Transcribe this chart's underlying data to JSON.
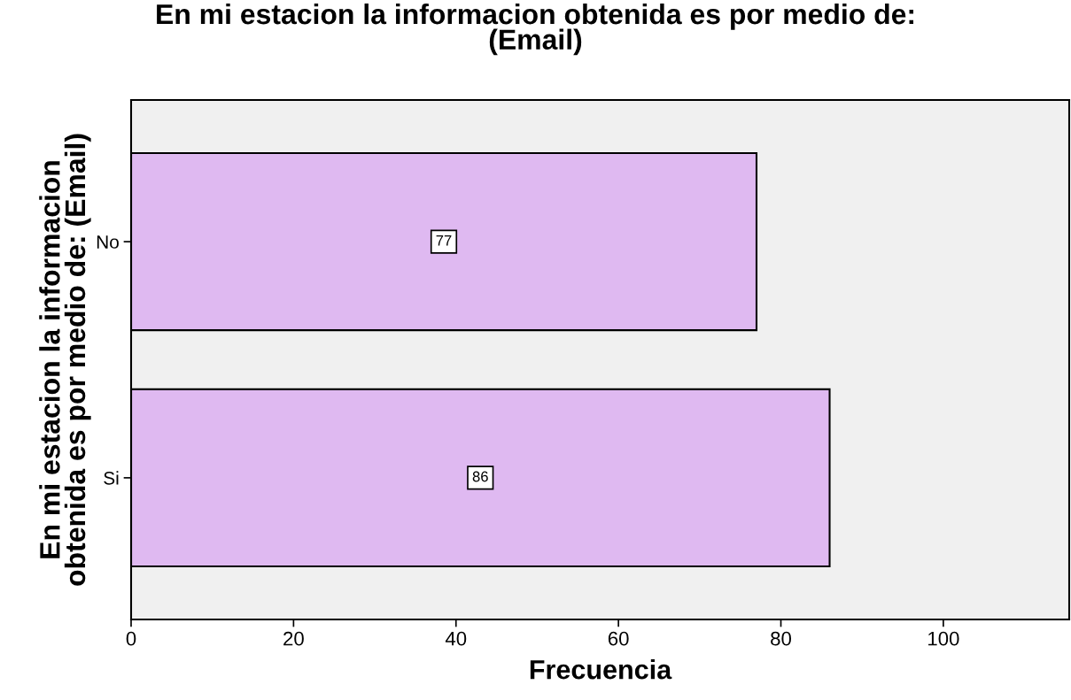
{
  "chart_data": {
    "type": "bar",
    "orientation": "horizontal",
    "title": "En mi estacion la informacion obtenida es por medio de:\n(Email)",
    "xlabel": "Frecuencia",
    "ylabel": "En mi estacion la informacion\nobtenida es por medio de: (Email)",
    "categories": [
      "No",
      "Si"
    ],
    "values": [
      77,
      86
    ],
    "color": "#dfb9f1",
    "data_labels": true,
    "xlim": [
      0,
      115.5
    ],
    "xticks": [
      0,
      20,
      40,
      60,
      80,
      100
    ],
    "grid": false
  }
}
